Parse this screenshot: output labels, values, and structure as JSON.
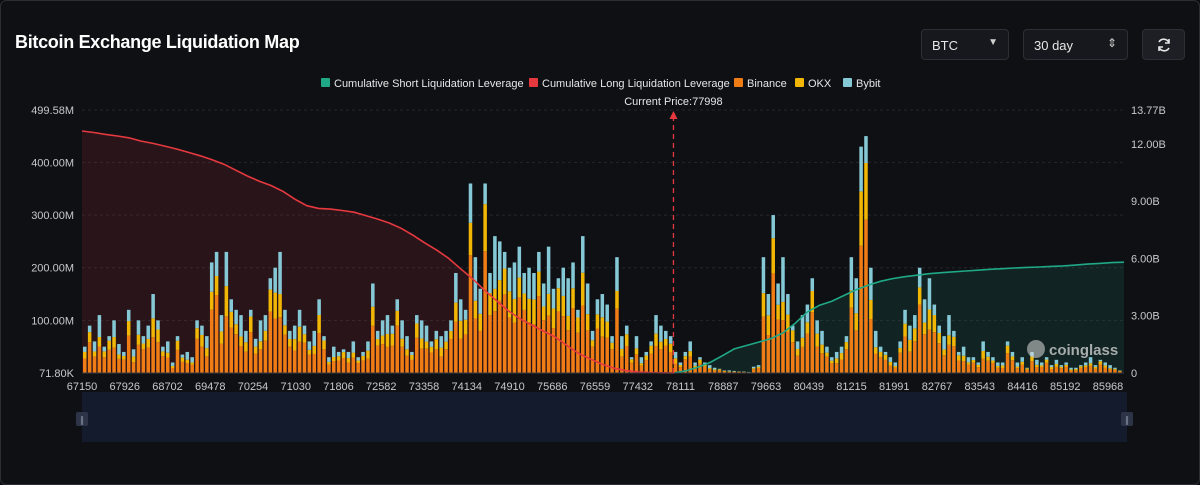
{
  "header": {
    "title": "Bitcoin Exchange Liquidation Map",
    "symbol": "BTC",
    "range": "30 day"
  },
  "colors": {
    "short": "#1fa987",
    "long": "#e6393f",
    "binance": "#f07c16",
    "okx": "#f2b705",
    "bybit": "#86c9d6",
    "background": "#0f1014"
  },
  "watermark": "coinglass",
  "chart_data": {
    "type": "bar",
    "current_price_label": "Current Price:77998",
    "current_price": 77998,
    "legend_position": "top-center",
    "legend": [
      {
        "name": "Cumulative Short Liquidation Leverage",
        "color": "#1fa987",
        "marker": "square"
      },
      {
        "name": "Cumulative Long Liquidation Leverage",
        "color": "#e6393f",
        "marker": "square"
      },
      {
        "name": "Binance",
        "color": "#f07c16",
        "marker": "square"
      },
      {
        "name": "OKX",
        "color": "#f2b705",
        "marker": "square"
      },
      {
        "name": "Bybit",
        "color": "#86c9d6",
        "marker": "square"
      }
    ],
    "x_ticks": [
      "67150",
      "67926",
      "68702",
      "69478",
      "70254",
      "71030",
      "71806",
      "72582",
      "73358",
      "74134",
      "74910",
      "75686",
      "76559",
      "77432",
      "78111",
      "78887",
      "79663",
      "80439",
      "81215",
      "81991",
      "82767",
      "83543",
      "84416",
      "85192",
      "85968"
    ],
    "y_left_ticks": [
      "499.58M",
      "400.00M",
      "300.00M",
      "200.00M",
      "100.00M",
      "71.80K"
    ],
    "y_left_values": [
      499.58,
      400,
      300,
      200,
      100,
      0
    ],
    "y_right_ticks": [
      "13.77B",
      "12.00B",
      "9.00B",
      "6.00B",
      "3.00B",
      "0"
    ],
    "y_right_values": [
      13.77,
      12,
      9,
      6,
      3,
      0
    ],
    "ylim_left": [
      0,
      499.58
    ],
    "ylim_right": [
      0,
      13.77
    ],
    "bar_totals": [
      50,
      90,
      60,
      110,
      50,
      70,
      100,
      55,
      40,
      120,
      45,
      100,
      70,
      90,
      150,
      100,
      50,
      60,
      20,
      70,
      35,
      40,
      30,
      100,
      90,
      70,
      210,
      230,
      110,
      230,
      140,
      120,
      110,
      80,
      120,
      65,
      100,
      110,
      180,
      200,
      230,
      120,
      80,
      90,
      120,
      90,
      60,
      80,
      140,
      70,
      30,
      50,
      40,
      45,
      40,
      60,
      30,
      40,
      60,
      170,
      80,
      100,
      110,
      90,
      140,
      100,
      70,
      40,
      110,
      100,
      90,
      60,
      80,
      70,
      80,
      100,
      190,
      140,
      120,
      360,
      220,
      160,
      360,
      190,
      260,
      250,
      230,
      200,
      210,
      240,
      190,
      200,
      190,
      230,
      170,
      240,
      160,
      180,
      200,
      180,
      210,
      120,
      260,
      170,
      80,
      140,
      150,
      130,
      70,
      220,
      70,
      90,
      30,
      70,
      30,
      40,
      60,
      110,
      90,
      80,
      70,
      40,
      20,
      40,
      60,
      20,
      30,
      20,
      15,
      10,
      8,
      5,
      5,
      4,
      3,
      3,
      2,
      12,
      15,
      220,
      150,
      300,
      170,
      220,
      150,
      90,
      60,
      110,
      130,
      180,
      100,
      80,
      50,
      30,
      40,
      50,
      70,
      220,
      180,
      430,
      450,
      200,
      80,
      50,
      40,
      30,
      20,
      60,
      120,
      90,
      110,
      200,
      140,
      180,
      130,
      90,
      70,
      110,
      80,
      40,
      50,
      30,
      30,
      20,
      60,
      40,
      30,
      20,
      20,
      60,
      40,
      20,
      30,
      10,
      40,
      25,
      20,
      30,
      15,
      25,
      15,
      20,
      10,
      10,
      15,
      20,
      30,
      15,
      25,
      20,
      15,
      10,
      5
    ],
    "long_cumulative": [
      12.67,
      12.59,
      12.49,
      12.41,
      12.31,
      12.14,
      12.02,
      11.88,
      11.73,
      11.55,
      11.37,
      11.17,
      10.93,
      10.62,
      10.31,
      10.04,
      9.81,
      9.51,
      9.1,
      8.76,
      8.62,
      8.58,
      8.51,
      8.42,
      8.24,
      8.06,
      7.85,
      7.57,
      7.21,
      6.8,
      6.43,
      6.0,
      5.46,
      4.94,
      4.35,
      3.81,
      3.28,
      2.85,
      2.52,
      2.2,
      1.88,
      1.44,
      1.02,
      0.72,
      0.45,
      0.25,
      0.12,
      0.05,
      0.02,
      0.01,
      0
    ],
    "short_cumulative": [
      0,
      0.11,
      0.3,
      0.55,
      0.9,
      1.26,
      1.44,
      1.62,
      1.8,
      2.1,
      2.6,
      3.2,
      3.55,
      3.76,
      4.06,
      4.36,
      4.6,
      4.8,
      4.94,
      5.04,
      5.12,
      5.2,
      5.25,
      5.3,
      5.34,
      5.38,
      5.43,
      5.46,
      5.5,
      5.53,
      5.55,
      5.58,
      5.61,
      5.65,
      5.7,
      5.74,
      5.78,
      5.8
    ]
  }
}
